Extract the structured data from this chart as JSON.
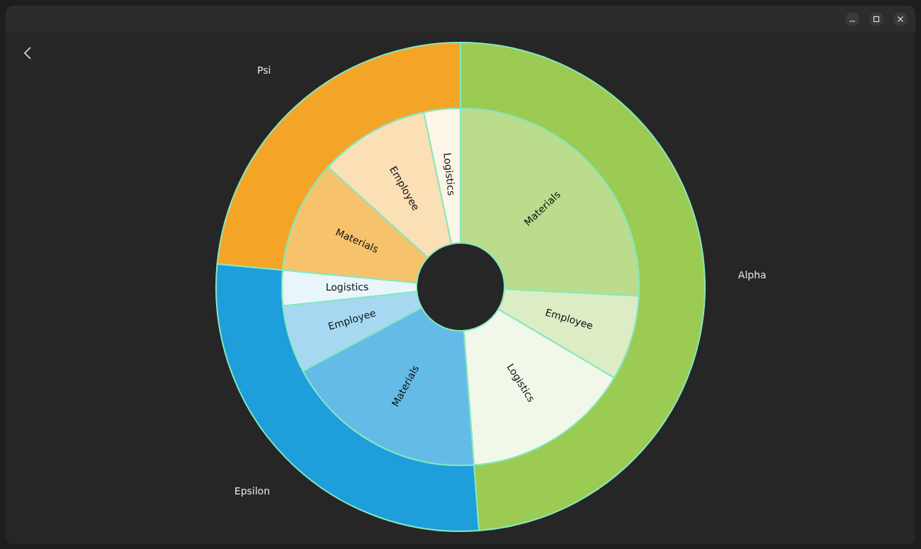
{
  "chart_data": [
    {
      "type": "donut",
      "categories": [
        "Alpha",
        "Epsilon",
        "Psi"
      ],
      "values": [
        48.8,
        27.7,
        23.5
      ],
      "colors": [
        "#9bcb53",
        "#1e9fdc",
        "#f4a527"
      ]
    },
    {
      "type": "donut",
      "categories": [
        "Materials",
        "Employee",
        "Logistics",
        "Materials",
        "Employee",
        "Logistics",
        "Materials",
        "Employee",
        "Logistics"
      ],
      "values": [
        25.8,
        7.7,
        15.3,
        18.4,
        6.1,
        3.2,
        10.2,
        10.0,
        3.3
      ],
      "colors": [
        "#badc8c",
        "#dcecc5",
        "#f2f8e9",
        "#64bbe8",
        "#a6d9f1",
        "#e8f5fb",
        "#f7c26c",
        "#fbdfb5",
        "#fef5e9"
      ]
    }
  ]
}
